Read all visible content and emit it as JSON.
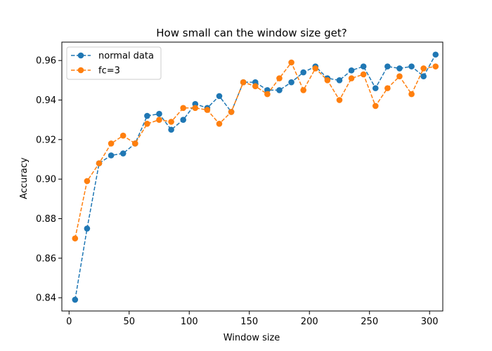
{
  "chart_data": {
    "type": "line",
    "title": "How small can the window size get?",
    "xlabel": "Window size",
    "ylabel": "Accuracy",
    "xlim": [
      -6,
      311
    ],
    "ylim": [
      0.8333,
      0.9693
    ],
    "x_ticks": [
      "0",
      "50",
      "100",
      "150",
      "200",
      "250",
      "300"
    ],
    "y_ticks": [
      "0.84",
      "0.86",
      "0.88",
      "0.90",
      "0.92",
      "0.94",
      "0.96"
    ],
    "grid": false,
    "legend_position": "top-left",
    "x": [
      5,
      15,
      25,
      35,
      45,
      55,
      65,
      75,
      85,
      95,
      105,
      115,
      125,
      135,
      145,
      155,
      165,
      175,
      185,
      195,
      205,
      215,
      225,
      235,
      245,
      255,
      265,
      275,
      285,
      295,
      305
    ],
    "series": [
      {
        "name": "normal data",
        "color": "#1f77b4",
        "values": [
          0.839,
          0.875,
          0.908,
          0.912,
          0.913,
          0.918,
          0.932,
          0.933,
          0.925,
          0.93,
          0.938,
          0.936,
          0.942,
          0.934,
          0.949,
          0.949,
          0.945,
          0.945,
          0.949,
          0.954,
          0.957,
          0.951,
          0.95,
          0.955,
          0.957,
          0.946,
          0.957,
          0.956,
          0.957,
          0.952,
          0.963
        ]
      },
      {
        "name": "fc=3",
        "color": "#ff7f0e",
        "values": [
          0.87,
          0.899,
          0.908,
          0.918,
          0.922,
          0.918,
          0.928,
          0.93,
          0.929,
          0.936,
          0.936,
          0.935,
          0.928,
          0.934,
          0.949,
          0.947,
          0.943,
          0.951,
          0.959,
          0.945,
          0.956,
          0.95,
          0.94,
          0.951,
          0.953,
          0.937,
          0.946,
          0.952,
          0.943,
          0.956,
          0.957
        ]
      }
    ]
  }
}
